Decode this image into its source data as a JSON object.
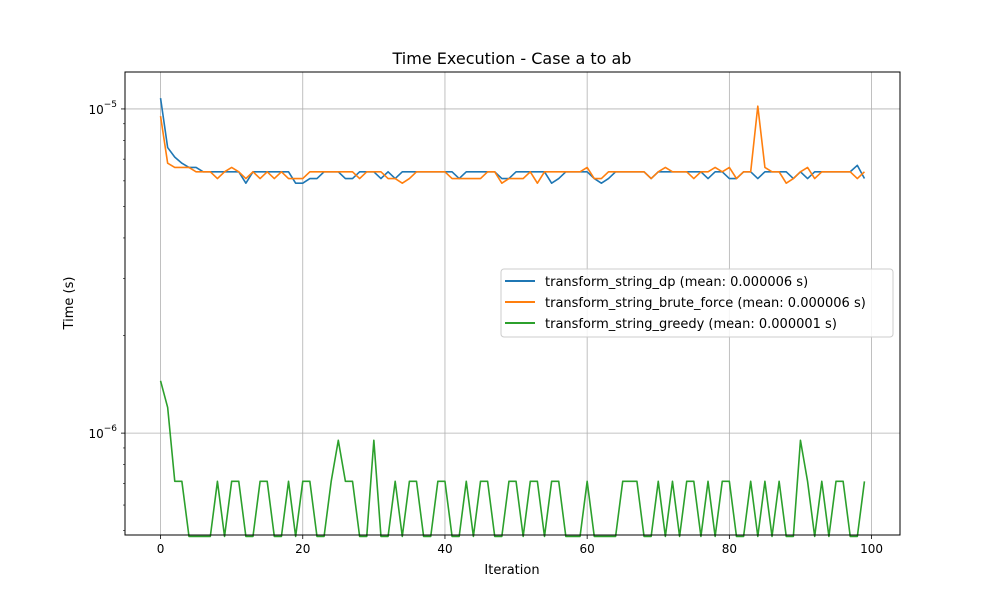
{
  "chart_data": {
    "type": "line",
    "title": "Time Execution - Case a to ab",
    "xlabel": "Iteration",
    "ylabel": "Time (s)",
    "yscale": "log",
    "xlim": [
      -5,
      104
    ],
    "ylim": [
      4.85e-07,
      1.3e-05
    ],
    "grid": true,
    "legend_position": "center-right",
    "x_ticks": [
      {
        "value": 0,
        "label": "0"
      },
      {
        "value": 20,
        "label": "20"
      },
      {
        "value": 40,
        "label": "40"
      },
      {
        "value": 60,
        "label": "60"
      },
      {
        "value": 80,
        "label": "80"
      },
      {
        "value": 100,
        "label": "100"
      }
    ],
    "y_ticks": [
      {
        "value": 1e-06,
        "base": "10",
        "exp": "−6"
      },
      {
        "value": 1e-05,
        "base": "10",
        "exp": "−5"
      }
    ],
    "series": [
      {
        "name": "transform_string_dp (mean: 0.000006 s)",
        "color": "#1f77b4",
        "values": [
          1.08e-05,
          7.6e-06,
          7.1e-06,
          6.8e-06,
          6.6e-06,
          6.6e-06,
          6.4e-06,
          6.4e-06,
          6.4e-06,
          6.4e-06,
          6.4e-06,
          6.4e-06,
          5.9e-06,
          6.4e-06,
          6.4e-06,
          6.4e-06,
          6.4e-06,
          6.4e-06,
          6.4e-06,
          5.9e-06,
          5.9e-06,
          6.1e-06,
          6.1e-06,
          6.4e-06,
          6.4e-06,
          6.4e-06,
          6.1e-06,
          6.1e-06,
          6.4e-06,
          6.4e-06,
          6.4e-06,
          6.1e-06,
          6.4e-06,
          6.1e-06,
          6.4e-06,
          6.4e-06,
          6.4e-06,
          6.4e-06,
          6.4e-06,
          6.4e-06,
          6.4e-06,
          6.4e-06,
          6.1e-06,
          6.4e-06,
          6.4e-06,
          6.4e-06,
          6.4e-06,
          6.4e-06,
          6.1e-06,
          6.1e-06,
          6.4e-06,
          6.4e-06,
          6.4e-06,
          6.4e-06,
          6.4e-06,
          5.9e-06,
          6.1e-06,
          6.4e-06,
          6.4e-06,
          6.4e-06,
          6.4e-06,
          6.1e-06,
          5.9e-06,
          6.1e-06,
          6.4e-06,
          6.4e-06,
          6.4e-06,
          6.4e-06,
          6.4e-06,
          6.1e-06,
          6.4e-06,
          6.4e-06,
          6.4e-06,
          6.4e-06,
          6.4e-06,
          6.4e-06,
          6.4e-06,
          6.1e-06,
          6.4e-06,
          6.4e-06,
          6.1e-06,
          6.1e-06,
          6.4e-06,
          6.4e-06,
          6.1e-06,
          6.4e-06,
          6.4e-06,
          6.4e-06,
          6.4e-06,
          6.1e-06,
          6.4e-06,
          6.1e-06,
          6.4e-06,
          6.4e-06,
          6.4e-06,
          6.4e-06,
          6.4e-06,
          6.4e-06,
          6.7e-06,
          6.1e-06
        ]
      },
      {
        "name": "transform_string_brute_force (mean: 0.000006 s)",
        "color": "#ff7f0e",
        "values": [
          9.5e-06,
          6.8e-06,
          6.6e-06,
          6.6e-06,
          6.6e-06,
          6.4e-06,
          6.4e-06,
          6.4e-06,
          6.1e-06,
          6.4e-06,
          6.6e-06,
          6.4e-06,
          6.1e-06,
          6.4e-06,
          6.1e-06,
          6.4e-06,
          6.1e-06,
          6.4e-06,
          6.1e-06,
          6.1e-06,
          6.1e-06,
          6.4e-06,
          6.4e-06,
          6.4e-06,
          6.4e-06,
          6.4e-06,
          6.4e-06,
          6.4e-06,
          6.1e-06,
          6.4e-06,
          6.4e-06,
          6.4e-06,
          6.1e-06,
          6.1e-06,
          5.9e-06,
          6.1e-06,
          6.4e-06,
          6.4e-06,
          6.4e-06,
          6.4e-06,
          6.4e-06,
          6.1e-06,
          6.1e-06,
          6.1e-06,
          6.1e-06,
          6.1e-06,
          6.4e-06,
          6.4e-06,
          5.9e-06,
          6.1e-06,
          6.1e-06,
          6.1e-06,
          6.4e-06,
          5.9e-06,
          6.4e-06,
          6.4e-06,
          6.4e-06,
          6.4e-06,
          6.4e-06,
          6.4e-06,
          6.6e-06,
          6.1e-06,
          6.1e-06,
          6.4e-06,
          6.4e-06,
          6.4e-06,
          6.4e-06,
          6.4e-06,
          6.4e-06,
          6.1e-06,
          6.4e-06,
          6.6e-06,
          6.4e-06,
          6.4e-06,
          6.4e-06,
          6.1e-06,
          6.4e-06,
          6.4e-06,
          6.6e-06,
          6.4e-06,
          6.6e-06,
          6.1e-06,
          6.4e-06,
          6.4e-06,
          1.02e-05,
          6.6e-06,
          6.4e-06,
          6.4e-06,
          5.9e-06,
          6.1e-06,
          6.4e-06,
          6.6e-06,
          6.1e-06,
          6.4e-06,
          6.4e-06,
          6.4e-06,
          6.4e-06,
          6.4e-06,
          6.1e-06,
          6.4e-06
        ]
      },
      {
        "name": "transform_string_greedy (mean: 0.000001 s)",
        "color": "#2ca02c",
        "values": [
          1.45e-06,
          1.2e-06,
          7.1e-07,
          7.1e-07,
          4.8e-07,
          4.8e-07,
          4.8e-07,
          4.8e-07,
          7.1e-07,
          4.8e-07,
          7.1e-07,
          7.1e-07,
          4.8e-07,
          4.8e-07,
          7.1e-07,
          7.1e-07,
          4.8e-07,
          4.8e-07,
          7.1e-07,
          4.8e-07,
          7.1e-07,
          7.1e-07,
          4.8e-07,
          4.8e-07,
          7.1e-07,
          9.5e-07,
          7.1e-07,
          7.1e-07,
          4.8e-07,
          4.8e-07,
          9.5e-07,
          4.8e-07,
          4.8e-07,
          7.1e-07,
          4.8e-07,
          7.1e-07,
          7.1e-07,
          4.8e-07,
          4.8e-07,
          7.1e-07,
          7.1e-07,
          4.8e-07,
          4.8e-07,
          7.1e-07,
          4.8e-07,
          7.1e-07,
          7.1e-07,
          4.8e-07,
          4.8e-07,
          7.1e-07,
          7.1e-07,
          4.8e-07,
          7.1e-07,
          7.1e-07,
          4.8e-07,
          7.1e-07,
          7.1e-07,
          4.8e-07,
          4.8e-07,
          4.8e-07,
          7.1e-07,
          4.8e-07,
          4.8e-07,
          4.8e-07,
          4.8e-07,
          7.1e-07,
          7.1e-07,
          7.1e-07,
          4.8e-07,
          4.8e-07,
          7.1e-07,
          4.8e-07,
          7.1e-07,
          4.8e-07,
          7.1e-07,
          7.1e-07,
          4.8e-07,
          7.1e-07,
          4.8e-07,
          7.1e-07,
          7.1e-07,
          4.8e-07,
          4.8e-07,
          7.1e-07,
          4.8e-07,
          7.1e-07,
          4.8e-07,
          7.1e-07,
          4.8e-07,
          4.8e-07,
          9.5e-07,
          7.1e-07,
          4.8e-07,
          7.1e-07,
          4.8e-07,
          7.1e-07,
          7.1e-07,
          4.8e-07,
          4.8e-07,
          7.1e-07
        ]
      }
    ]
  }
}
